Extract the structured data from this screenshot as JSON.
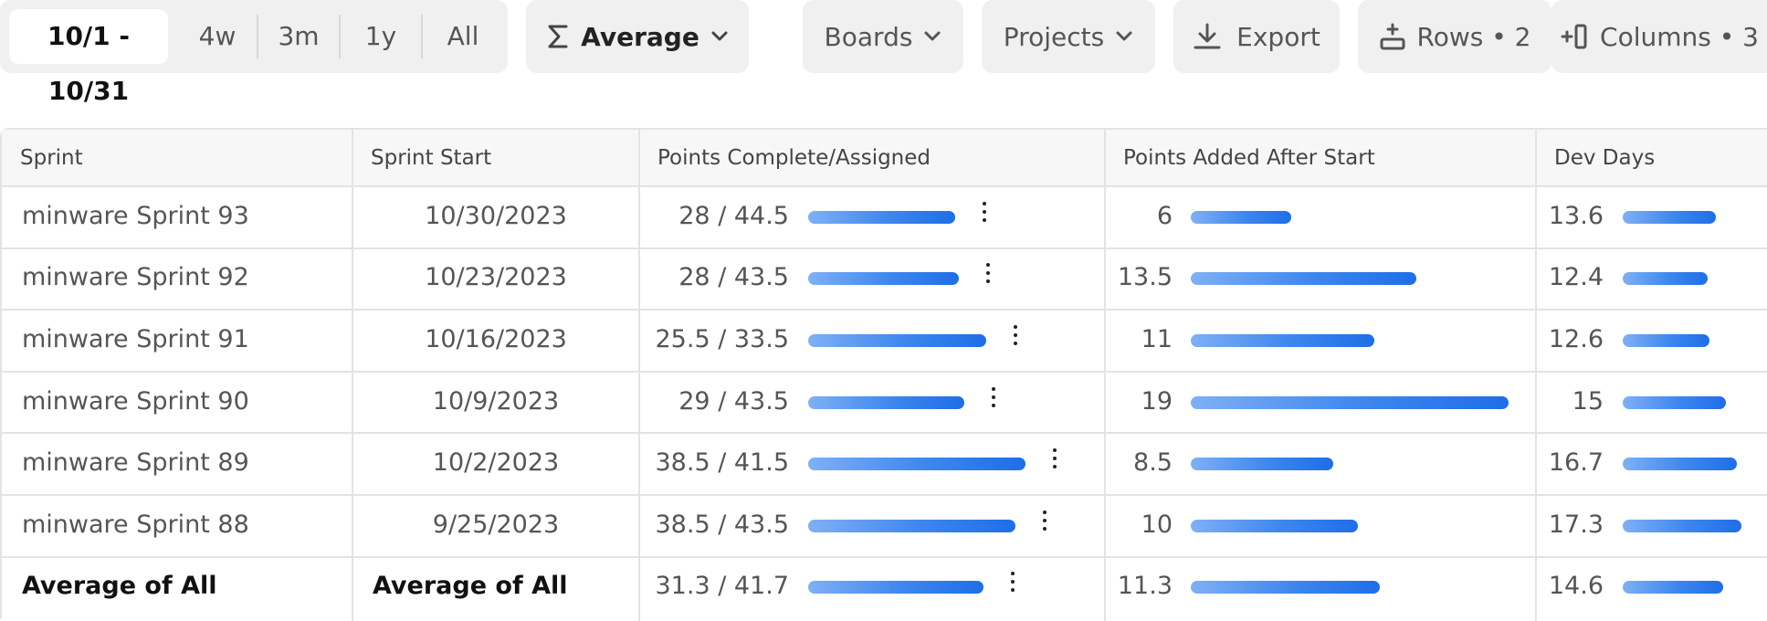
{
  "toolbar": {
    "range_tabs": [
      "10/1 - 10/31",
      "4w",
      "3m",
      "1y",
      "All"
    ],
    "aggregate_label": "Average",
    "boards_label": "Boards",
    "projects_label": "Projects",
    "export_label": "Export",
    "rows_label": "Rows • 2",
    "columns_label": "Columns • 3"
  },
  "table": {
    "headers": [
      "Sprint",
      "Sprint Start",
      "Points Complete/Assigned",
      "Points Added After Start",
      "Dev Days"
    ],
    "rows": [
      {
        "sprint": "minware Sprint 93",
        "start": "10/30/2023",
        "points": "28 / 44.5",
        "points_fraction": 0.629,
        "added": "6",
        "added_value": 6,
        "dev_days": "13.6",
        "dev_days_value": 13.6
      },
      {
        "sprint": "minware Sprint 92",
        "start": "10/23/2023",
        "points": "28 / 43.5",
        "points_fraction": 0.644,
        "added": "13.5",
        "added_value": 13.5,
        "dev_days": "12.4",
        "dev_days_value": 12.4
      },
      {
        "sprint": "minware Sprint 91",
        "start": "10/16/2023",
        "points": "25.5 / 33.5",
        "points_fraction": 0.761,
        "added": "11",
        "added_value": 11,
        "dev_days": "12.6",
        "dev_days_value": 12.6
      },
      {
        "sprint": "minware Sprint 90",
        "start": "10/9/2023",
        "points": "29 / 43.5",
        "points_fraction": 0.667,
        "added": "19",
        "added_value": 19,
        "dev_days": "15",
        "dev_days_value": 15
      },
      {
        "sprint": "minware Sprint 89",
        "start": "10/2/2023",
        "points": "38.5 / 41.5",
        "points_fraction": 0.928,
        "added": "8.5",
        "added_value": 8.5,
        "dev_days": "16.7",
        "dev_days_value": 16.7
      },
      {
        "sprint": "minware Sprint 88",
        "start": "9/25/2023",
        "points": "38.5 / 43.5",
        "points_fraction": 0.885,
        "added": "10",
        "added_value": 10,
        "dev_days": "17.3",
        "dev_days_value": 17.3
      },
      {
        "sprint": "Average of All",
        "start": "Average of All",
        "points": "31.3 / 41.7",
        "points_fraction": 0.751,
        "added": "11.3",
        "added_value": 11.3,
        "dev_days": "14.6",
        "dev_days_value": 14.6,
        "summary": true
      }
    ]
  },
  "colors": {
    "accent_bar_start": "#7fb0f5",
    "accent_bar_end": "#1f6ee8",
    "toolbar_bg": "#f0f0f0"
  }
}
